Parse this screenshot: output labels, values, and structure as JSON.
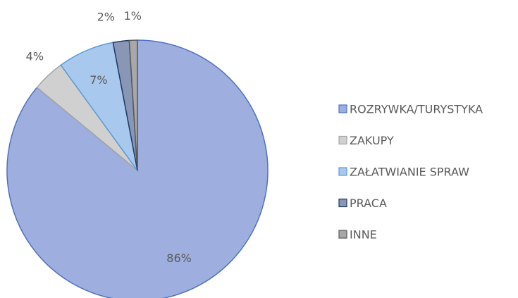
{
  "chart_data": {
    "type": "pie",
    "categories": [
      "ROZRYWKA/TURYSTYKA",
      "ZAKUPY",
      "ZAŁATWIANIE SPRAW",
      "PRACA",
      "INNE"
    ],
    "values": [
      86,
      4,
      7,
      2,
      1
    ],
    "value_labels": [
      "86%",
      "4%",
      "7%",
      "2%",
      "1%"
    ],
    "colors": [
      "#9eafdf",
      "#d0d0d0",
      "#a9c8ee",
      "#8a96b5",
      "#a8a8a8"
    ],
    "legend": "right"
  }
}
